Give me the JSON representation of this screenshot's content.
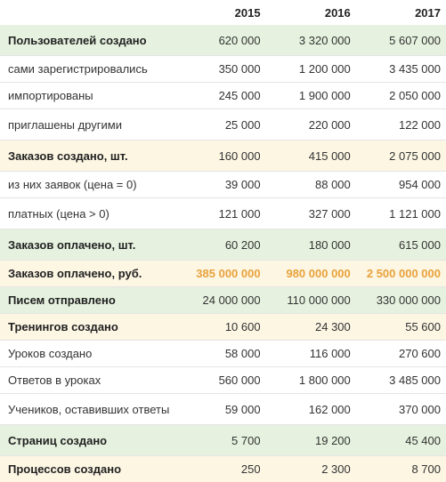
{
  "header": {
    "years": [
      "2015",
      "2016",
      "2017"
    ]
  },
  "rows": [
    {
      "label": "Пользователей создано",
      "values": [
        "620 000",
        "3 320 000",
        "5 607 000"
      ]
    },
    {
      "label": "сами зарегистрировались",
      "values": [
        "350 000",
        "1 200 000",
        "3 435 000"
      ]
    },
    {
      "label": "импортированы",
      "values": [
        "245 000",
        "1 900 000",
        "2 050 000"
      ]
    },
    {
      "label": "приглашены другими",
      "values": [
        "25 000",
        "220 000",
        "122 000"
      ]
    },
    {
      "label": "Заказов создано, шт.",
      "values": [
        "160 000",
        "415 000",
        "2 075 000"
      ]
    },
    {
      "label": "из них заявок (цена = 0)",
      "values": [
        "39 000",
        "88 000",
        "954 000"
      ]
    },
    {
      "label": "платных (цена > 0)",
      "values": [
        "121 000",
        "327 000",
        "1 121 000"
      ]
    },
    {
      "label": "Заказов оплачено, шт.",
      "values": [
        "60 200",
        "180 000",
        "615 000"
      ]
    },
    {
      "label": "Заказов оплачено, руб.",
      "values": [
        "385 000 000",
        "980 000 000",
        "2 500 000 000"
      ]
    },
    {
      "label": "Писем отправлено",
      "values": [
        "24 000 000",
        "110 000 000",
        "330 000 000"
      ]
    },
    {
      "label": "Тренингов создано",
      "values": [
        "10 600",
        "24 300",
        "55 600"
      ]
    },
    {
      "label": "Уроков создано",
      "values": [
        "58 000",
        "116 000",
        "270 600"
      ]
    },
    {
      "label": "Ответов в уроках",
      "values": [
        "560 000",
        "1 800 000",
        "3 485 000"
      ]
    },
    {
      "label": "Учеников, оставивших ответы",
      "values": [
        "59 000",
        "162 000",
        "370 000"
      ]
    },
    {
      "label": "Страниц создано",
      "values": [
        "5 700",
        "19 200",
        "45 400"
      ]
    },
    {
      "label": "Процессов создано",
      "values": [
        "250",
        "2 300",
        "8 700"
      ]
    }
  ],
  "colors": {
    "green_row": "#e6f2df",
    "yellow_row": "#fcf6e3",
    "orange_values": "#e9a23b"
  }
}
